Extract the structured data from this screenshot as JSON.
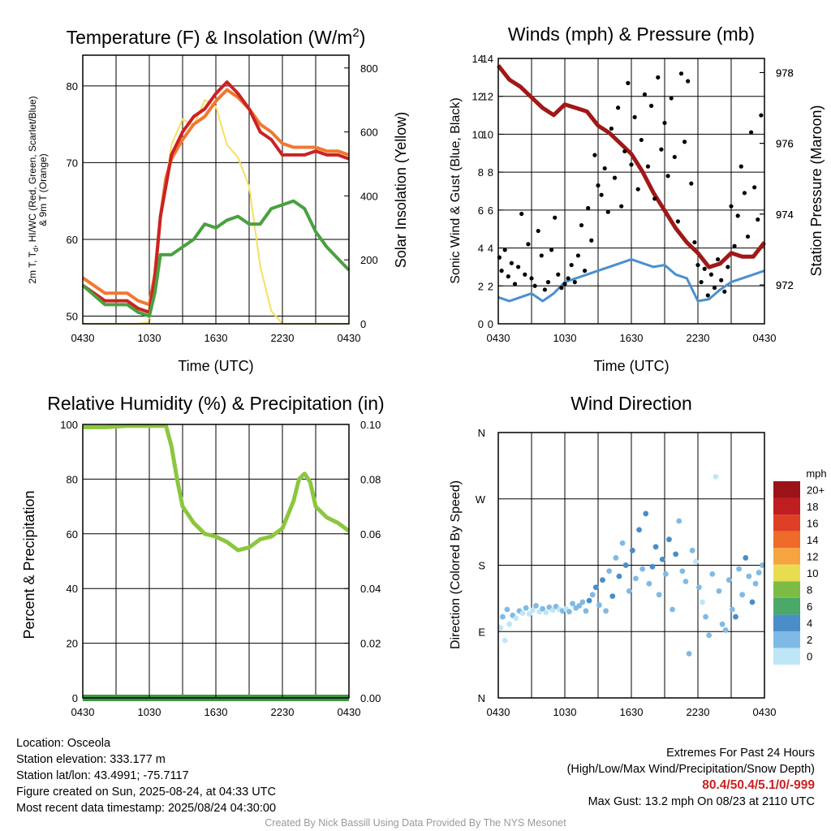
{
  "chart_data": [
    {
      "type": "line",
      "title": "Temperature (F) & Insolation (W/m²)",
      "xlabel": "Time (UTC)",
      "ylabel": "2m T, Td, HI/WC (Red, Green, Scarlet/Blue) & 9m T (Orange)",
      "ylabel2": "Solar Insolation (Yellow)",
      "x_ticks": [
        "0430",
        "1030",
        "1630",
        "2230",
        "0430"
      ],
      "ylim": [
        49,
        84
      ],
      "y_ticks": [
        50,
        60,
        70,
        80
      ],
      "ylim2": [
        0,
        840
      ],
      "y2_ticks": [
        0,
        200,
        400,
        600,
        800
      ],
      "x_hours": [
        0,
        2,
        4,
        5,
        6,
        6.5,
        7,
        7.5,
        8,
        9,
        10,
        11,
        12,
        13,
        14,
        15,
        16,
        17,
        18,
        19,
        20,
        21,
        22,
        23,
        24
      ],
      "series": [
        {
          "name": "2m T",
          "color": "#cc2222",
          "axis": "left",
          "values": [
            54,
            52,
            52,
            51,
            50.5,
            55,
            63,
            67,
            71,
            74,
            76,
            77,
            79,
            80.5,
            79,
            77,
            74,
            73,
            71,
            71,
            71,
            71.5,
            71,
            71,
            70.5
          ]
        },
        {
          "name": "9m T",
          "color": "#f07830",
          "axis": "left",
          "values": [
            55,
            53,
            53,
            52,
            51.5,
            55.5,
            63,
            68,
            70.5,
            73,
            75,
            76,
            78,
            79.5,
            78.5,
            77,
            75,
            74,
            72.5,
            72,
            72,
            72,
            71.5,
            71.5,
            71
          ]
        },
        {
          "name": "Td",
          "color": "#4aa040",
          "axis": "left",
          "values": [
            54,
            51.5,
            51.5,
            50.5,
            50,
            53,
            58,
            58,
            58,
            59,
            60,
            62,
            61.5,
            62.5,
            63,
            62,
            62,
            64,
            64.5,
            65,
            64,
            61,
            59,
            57.5,
            56
          ]
        },
        {
          "name": "Solar Insolation",
          "color": "#f5e060",
          "axis": "right",
          "values": [
            0,
            0,
            0,
            0,
            5,
            120,
            320,
            450,
            560,
            640,
            620,
            700,
            680,
            560,
            520,
            430,
            180,
            40,
            0,
            0,
            0,
            0,
            0,
            0,
            0
          ]
        }
      ]
    },
    {
      "type": "line",
      "title": "Winds (mph) & Pressure (mb)",
      "xlabel": "Time (UTC)",
      "ylabel": "Sonic Wind & Gust (Blue, Black)",
      "ylabel2": "Station Pressure (Maroon)",
      "x_ticks": [
        "0430",
        "1030",
        "1630",
        "2230",
        "0430"
      ],
      "ylim": [
        0,
        14
      ],
      "y_ticks": [
        0,
        2,
        4,
        6,
        8,
        10,
        12,
        14
      ],
      "ylim2": [
        970.9,
        978.4
      ],
      "y2_ticks": [
        972,
        974,
        976,
        978
      ],
      "series": [
        {
          "name": "Sonic Wind",
          "color": "#4a90d0",
          "axis": "left",
          "x_hours": [
            0,
            1,
            2,
            3,
            4,
            5,
            6,
            7,
            8,
            9,
            10,
            11,
            12,
            13,
            14,
            15,
            16,
            17,
            18,
            19,
            20,
            21,
            22,
            23,
            24
          ],
          "values": [
            1.4,
            1.2,
            1.4,
            1.6,
            1.2,
            1.6,
            2.2,
            2.4,
            2.6,
            2.8,
            3,
            3.2,
            3.4,
            3.2,
            3,
            3.1,
            2.6,
            2.4,
            1.2,
            1.3,
            1.8,
            2.2,
            2.4,
            2.6,
            2.8
          ]
        },
        {
          "name": "Gust",
          "color": "#000000",
          "axis": "left",
          "marker": "dot",
          "x_hours": [
            0.1,
            0.3,
            0.6,
            0.9,
            1.2,
            1.5,
            1.8,
            2.1,
            2.4,
            2.7,
            3,
            3.3,
            3.6,
            3.9,
            4.2,
            4.5,
            4.8,
            5.1,
            5.4,
            5.7,
            6,
            6.3,
            6.6,
            6.9,
            7.2,
            7.5,
            7.8,
            8.1,
            8.4,
            8.7,
            9,
            9.3,
            9.6,
            9.9,
            10.2,
            10.5,
            10.8,
            11.1,
            11.4,
            11.7,
            12,
            12.3,
            12.6,
            12.9,
            13.2,
            13.5,
            13.8,
            14.1,
            14.4,
            14.7,
            15,
            15.3,
            15.6,
            15.9,
            16.2,
            16.5,
            16.8,
            17.1,
            17.4,
            17.7,
            18,
            18.3,
            18.6,
            18.9,
            19.2,
            19.5,
            19.8,
            20.1,
            20.4,
            20.7,
            21,
            21.3,
            21.6,
            21.9,
            22.2,
            22.5,
            22.8,
            23.1,
            23.4,
            23.7
          ],
          "values": [
            3.5,
            2.8,
            3.9,
            2.5,
            3.2,
            2.1,
            3.0,
            5.8,
            2.6,
            4.2,
            2.4,
            2.0,
            4.9,
            3.6,
            1.8,
            2.2,
            3.9,
            5.6,
            2.6,
            1.9,
            2.1,
            2.4,
            3.1,
            2.2,
            3.6,
            5.2,
            2.8,
            6.1,
            4.4,
            8.9,
            7.3,
            6.8,
            8.2,
            5.9,
            10.3,
            7.7,
            11.4,
            6.2,
            9.1,
            12.7,
            8.4,
            10.9,
            7.1,
            9.7,
            12.1,
            8.3,
            11.5,
            6.6,
            13.0,
            9.2,
            10.6,
            7.8,
            11.9,
            8.8,
            5.4,
            13.2,
            9.6,
            12.8,
            7.4,
            4.3,
            3.1,
            2.2,
            2.9,
            1.5,
            2.6,
            1.9,
            3.4,
            2.3,
            1.7,
            3.0,
            6.2,
            4.1,
            5.7,
            8.3,
            6.9,
            4.6,
            10.1,
            7.2,
            5.5,
            11.0
          ]
        },
        {
          "name": "Station Pressure",
          "color": "#a01818",
          "axis": "right",
          "x_hours": [
            0,
            0.5,
            1,
            2,
            3,
            4,
            5,
            6,
            7,
            8,
            9,
            10,
            11,
            12,
            13,
            14,
            15,
            16,
            17,
            18,
            19,
            20,
            21,
            22,
            23,
            24
          ],
          "values": [
            978.2,
            978.0,
            977.8,
            977.6,
            977.3,
            977.0,
            976.8,
            977.1,
            977.0,
            976.9,
            976.5,
            976.3,
            976.0,
            975.7,
            975.2,
            974.6,
            974.1,
            973.6,
            973.2,
            972.9,
            972.5,
            972.6,
            972.9,
            972.8,
            972.8,
            973.2
          ]
        }
      ]
    },
    {
      "type": "line",
      "title": "Relative Humidity (%) & Precipitation (in)",
      "ylabel": "Percent & Precipitation",
      "x_ticks": [
        "0430",
        "1030",
        "1630",
        "2230",
        "0430"
      ],
      "ylim": [
        0,
        100
      ],
      "y_ticks": [
        0,
        20,
        40,
        60,
        80,
        100
      ],
      "ylim2": [
        0,
        0.1
      ],
      "y2_ticks": [
        "0.00",
        "0.02",
        "0.04",
        "0.06",
        "0.08",
        "0.10"
      ],
      "series": [
        {
          "name": "Relative Humidity",
          "color": "#8cc63f",
          "axis": "left",
          "x_hours": [
            0,
            2,
            4,
            6,
            7.5,
            8,
            8.5,
            9,
            10,
            11,
            12,
            13,
            14,
            15,
            16,
            17,
            18,
            19,
            19.5,
            20,
            20.5,
            21,
            22,
            23,
            24
          ],
          "values": [
            99,
            99,
            99.5,
            99.5,
            99.5,
            92,
            80,
            70,
            64,
            60,
            59,
            57,
            54,
            55,
            58,
            59,
            62,
            72,
            80,
            82,
            79,
            70,
            66,
            64,
            61
          ]
        },
        {
          "name": "Precipitation",
          "color": "#3a9a40",
          "axis": "right",
          "x_hours": [
            0,
            24
          ],
          "values": [
            0,
            0
          ]
        }
      ]
    },
    {
      "type": "scatter",
      "title": "Wind Direction",
      "ylabel": "Direction (Colored By Speed)",
      "x_ticks": [
        "0430",
        "1030",
        "1630",
        "2230",
        "0430"
      ],
      "y_ticks": [
        "N",
        "E",
        "S",
        "W",
        "N"
      ],
      "ylim": [
        0,
        360
      ],
      "colorbar_title": "mph",
      "colorbar_labels": [
        "0",
        "2",
        "4",
        "6",
        "8",
        "10",
        "12",
        "14",
        "16",
        "18",
        "20+"
      ],
      "colorbar_colors": [
        "#bfe6f7",
        "#7fbae6",
        "#4a8dc8",
        "#4aa869",
        "#7cbc45",
        "#e8dd4e",
        "#f5a440",
        "#ee6b2a",
        "#df3f26",
        "#c01d20",
        "#9b1318"
      ],
      "x_hours": [
        0.2,
        0.4,
        0.6,
        0.8,
        1.0,
        1.3,
        1.6,
        1.9,
        2.2,
        2.5,
        2.8,
        3.1,
        3.4,
        3.7,
        4.0,
        4.3,
        4.6,
        4.9,
        5.2,
        5.5,
        5.8,
        6.1,
        6.4,
        6.7,
        7.0,
        7.3,
        7.6,
        7.9,
        8.2,
        8.5,
        8.8,
        9.1,
        9.4,
        9.7,
        10.0,
        10.3,
        10.6,
        10.9,
        11.2,
        11.5,
        11.8,
        12.1,
        12.4,
        12.7,
        13.0,
        13.3,
        13.6,
        13.9,
        14.2,
        14.5,
        14.8,
        15.1,
        15.4,
        15.7,
        16.0,
        16.3,
        16.6,
        16.9,
        17.2,
        17.5,
        17.8,
        18.1,
        18.4,
        18.7,
        19.0,
        19.3,
        19.6,
        19.9,
        20.2,
        20.5,
        20.8,
        21.1,
        21.4,
        21.7,
        22.0,
        22.3,
        22.6,
        22.9,
        23.2,
        23.5,
        23.8
      ],
      "values": [
        95,
        110,
        78,
        120,
        100,
        112,
        108,
        118,
        115,
        122,
        114,
        119,
        125,
        117,
        121,
        116,
        123,
        119,
        124,
        120,
        118,
        121,
        117,
        128,
        122,
        125,
        130,
        118,
        132,
        140,
        150,
        126,
        160,
        118,
        172,
        138,
        190,
        165,
        210,
        180,
        145,
        200,
        162,
        228,
        175,
        250,
        155,
        178,
        205,
        140,
        188,
        168,
        215,
        120,
        195,
        240,
        172,
        158,
        60,
        200,
        185,
        150,
        130,
        110,
        85,
        168,
        300,
        145,
        100,
        92,
        160,
        120,
        110,
        175,
        140,
        190,
        165,
        130,
        155,
        170,
        180
      ],
      "speeds": [
        0.5,
        1.2,
        0.8,
        1.5,
        0.4,
        1.0,
        0.7,
        1.3,
        0.6,
        1.1,
        0.9,
        0.5,
        1.4,
        0.8,
        1.2,
        0.6,
        1.0,
        0.7,
        1.3,
        0.5,
        1.1,
        0.9,
        1.6,
        1.2,
        2.0,
        2.4,
        2.8,
        1.8,
        3.2,
        2.6,
        3.6,
        2.2,
        3.0,
        1.9,
        2.7,
        3.4,
        2.5,
        3.1,
        2.9,
        3.8,
        2.3,
        3.3,
        2.6,
        3.9,
        2.8,
        3.5,
        2.4,
        3.7,
        3.0,
        2.2,
        3.4,
        2.7,
        3.6,
        2.9,
        3.2,
        2.5,
        2.0,
        1.6,
        2.4,
        1.8,
        0.9,
        1.2,
        0.8,
        1.4,
        1.0,
        1.6,
        0.7,
        1.1,
        1.3,
        2.2,
        2.5,
        2.8,
        3.0,
        2.6,
        2.9,
        3.1,
        2.7,
        3.3,
        2.4,
        2.6,
        2.8
      ]
    }
  ],
  "info": {
    "location": "Location: Osceola",
    "elevation": "Station elevation: 333.177 m",
    "latlon": "Station lat/lon: 43.4991; -75.7117",
    "created": "Figure created on Sun, 2025-08-24, at 04:33 UTC",
    "recent": "Most recent data timestamp: 2025/08/24 04:30:00"
  },
  "extremes": {
    "heading": "Extremes For Past 24 Hours",
    "legend": "(High/Low/Max Wind/Precipitation/Snow Depth)",
    "values": "80.4/50.4/5.1/0/-999",
    "gust": "Max Gust: 13.2 mph On 08/23 at 2110 UTC"
  },
  "credit": "Created By Nick Bassill Using Data Provided By The NYS Mesonet"
}
